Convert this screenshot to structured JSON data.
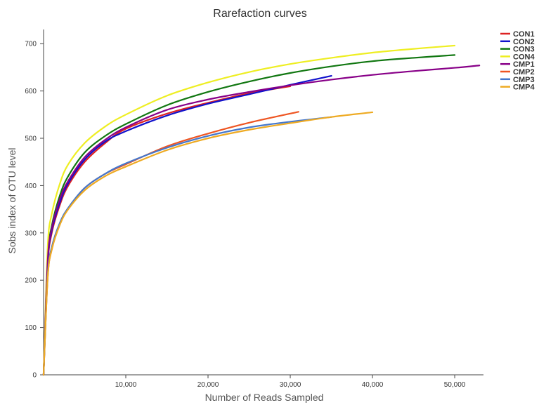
{
  "chart_data": {
    "type": "line",
    "title": "Rarefaction curves",
    "xlabel": "Number of Reads Sampled",
    "ylabel": "Sobs index of OTU level",
    "xlim": [
      0,
      53500
    ],
    "ylim": [
      0,
      730
    ],
    "x_ticks": [
      10000,
      20000,
      30000,
      40000,
      50000
    ],
    "x_tick_labels": [
      "10,000",
      "20,000",
      "30,000",
      "40,000",
      "50,000"
    ],
    "y_ticks": [
      0,
      100,
      200,
      300,
      400,
      500,
      600,
      700
    ],
    "y_tick_labels": [
      "0",
      "100",
      "200",
      "300",
      "400",
      "500",
      "600",
      "700"
    ],
    "grid": false,
    "legend_position": "top-right",
    "x_sample_points": [
      0,
      500,
      1000,
      2000,
      3000,
      5000,
      7500,
      10000,
      15000,
      20000,
      25000,
      30000,
      35000,
      40000,
      45000,
      50000,
      53000
    ],
    "series": [
      {
        "name": "CON1",
        "color": "#dd2222",
        "x": [
          0,
          500,
          1000,
          2000,
          3000,
          5000,
          7500,
          10000,
          15000,
          20000,
          25000,
          30000
        ],
        "y": [
          0,
          230,
          300,
          360,
          400,
          450,
          490,
          520,
          552,
          575,
          595,
          610
        ]
      },
      {
        "name": "CON2",
        "color": "#1111cc",
        "x": [
          0,
          500,
          1000,
          2000,
          3000,
          5000,
          7500,
          10000,
          15000,
          20000,
          25000,
          30000,
          35000
        ],
        "y": [
          0,
          235,
          305,
          365,
          405,
          455,
          493,
          515,
          548,
          573,
          593,
          613,
          632
        ]
      },
      {
        "name": "CON3",
        "color": "#117711",
        "x": [
          0,
          500,
          1000,
          2000,
          3000,
          5000,
          7500,
          10000,
          15000,
          20000,
          25000,
          30000,
          35000,
          40000,
          45000,
          50000
        ],
        "y": [
          0,
          245,
          315,
          380,
          420,
          470,
          505,
          530,
          570,
          598,
          620,
          638,
          652,
          663,
          670,
          676
        ]
      },
      {
        "name": "CON4",
        "color": "#eeee22",
        "x": [
          0,
          500,
          1000,
          2000,
          3000,
          5000,
          7500,
          10000,
          15000,
          20000,
          25000,
          30000,
          35000,
          40000,
          45000,
          50000
        ],
        "y": [
          0,
          270,
          340,
          405,
          445,
          490,
          525,
          550,
          590,
          618,
          640,
          657,
          670,
          681,
          689,
          696
        ]
      },
      {
        "name": "CMP1",
        "color": "#880088",
        "x": [
          0,
          500,
          1000,
          2000,
          3000,
          5000,
          7500,
          10000,
          15000,
          20000,
          25000,
          30000,
          35000,
          40000,
          45000,
          50000,
          53000
        ],
        "y": [
          0,
          240,
          310,
          372,
          410,
          460,
          497,
          523,
          560,
          582,
          598,
          612,
          624,
          634,
          642,
          649,
          654
        ]
      },
      {
        "name": "CMP2",
        "color": "#ee5522",
        "x": [
          0,
          500,
          1000,
          2000,
          3000,
          5000,
          7500,
          10000,
          15000,
          20000,
          25000,
          31000
        ],
        "y": [
          0,
          205,
          265,
          320,
          352,
          395,
          425,
          445,
          483,
          510,
          533,
          556
        ]
      },
      {
        "name": "CMP3",
        "color": "#4477cc",
        "x": [
          0,
          500,
          1000,
          2000,
          3000,
          5000,
          7500,
          10000,
          15000,
          20000,
          25000,
          30000,
          35000
        ],
        "y": [
          0,
          210,
          270,
          322,
          353,
          395,
          425,
          447,
          480,
          505,
          523,
          535,
          545
        ]
      },
      {
        "name": "CMP4",
        "color": "#eeaa22",
        "x": [
          0,
          500,
          1000,
          2000,
          3000,
          5000,
          7500,
          10000,
          15000,
          20000,
          25000,
          30000,
          35000,
          40000
        ],
        "y": [
          0,
          205,
          265,
          318,
          350,
          390,
          420,
          440,
          475,
          500,
          518,
          532,
          545,
          555
        ]
      }
    ]
  }
}
